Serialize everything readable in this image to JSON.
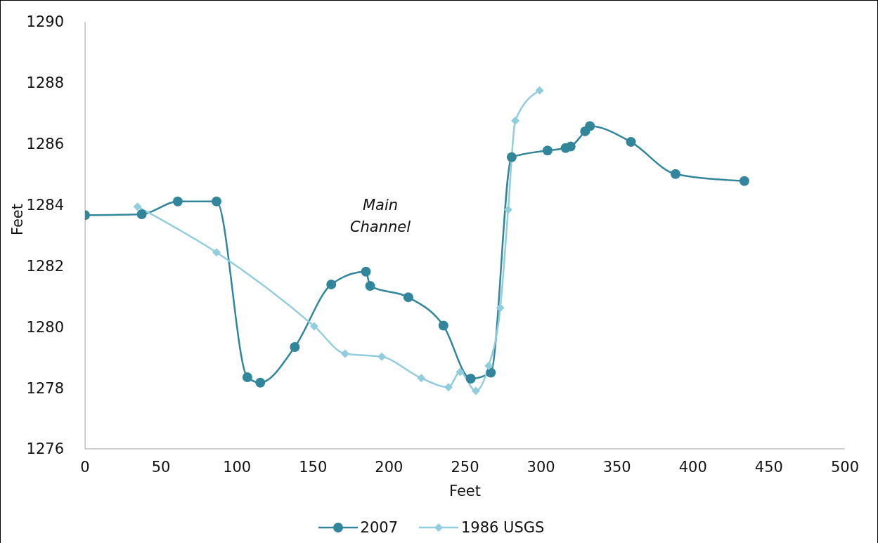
{
  "chart_data": {
    "type": "line",
    "xlabel": "Feet",
    "ylabel": "Feet",
    "xlim": [
      0,
      500
    ],
    "xticks": [
      0,
      50,
      100,
      150,
      200,
      250,
      300,
      350,
      400,
      450,
      500
    ],
    "ylim": [
      1276,
      1290
    ],
    "yticks": [
      1276,
      1278,
      1280,
      1282,
      1284,
      1286,
      1288,
      1290
    ],
    "grid": false,
    "legend": "bottom",
    "annotations": [
      "Main Channel"
    ],
    "series": [
      {
        "name": "2007",
        "color": "#31869b",
        "marker": "circle",
        "x": [
          0,
          37.3,
          61,
          86.5,
          106.8,
          115.3,
          138,
          162,
          184.8,
          187.6,
          212.7,
          235.8,
          253.8,
          267,
          280.7,
          304.3,
          316.2,
          319.5,
          329,
          332.2,
          359.2,
          388.5,
          433.8
        ],
        "values": [
          1283.66,
          1283.69,
          1284.11,
          1284.11,
          1278.35,
          1278.17,
          1279.34,
          1281.39,
          1281.81,
          1281.34,
          1280.97,
          1280.04,
          1278.3,
          1278.5,
          1285.56,
          1285.78,
          1285.86,
          1285.91,
          1286.41,
          1286.58,
          1286.06,
          1285.01,
          1284.78
        ]
      },
      {
        "name": "1986 USGS",
        "color": "#92cddc",
        "marker": "diamond",
        "x": [
          34.5,
          86.5,
          150.8,
          171.1,
          195.2,
          221.2,
          239.1,
          246.7,
          257.1,
          265.6,
          273.2,
          278.4,
          283.1,
          299.1
        ],
        "values": [
          1283.94,
          1282.44,
          1280.02,
          1279.12,
          1279.02,
          1278.32,
          1278.02,
          1278.52,
          1277.9,
          1278.72,
          1280.62,
          1283.84,
          1286.76,
          1287.75
        ]
      }
    ]
  }
}
